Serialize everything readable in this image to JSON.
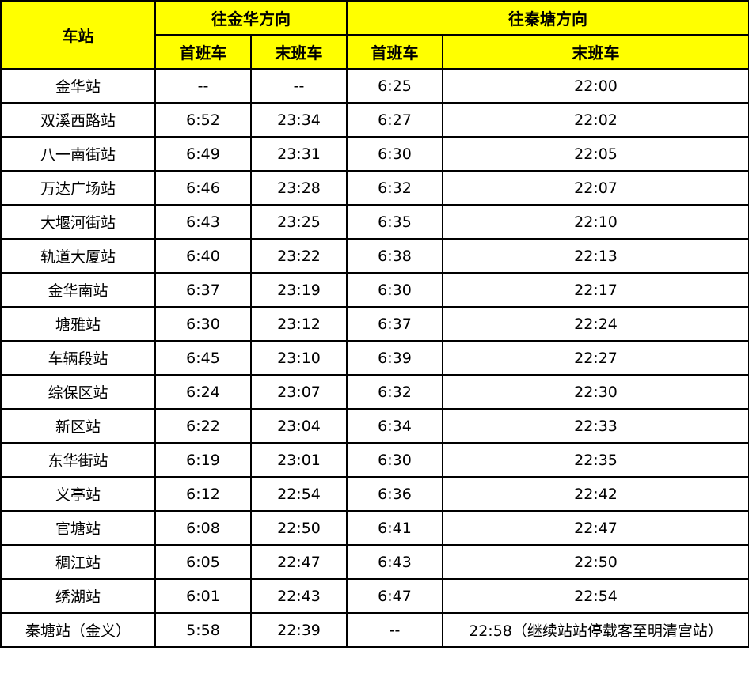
{
  "header": {
    "station": "车站",
    "dir_jinhua": "往金华方向",
    "dir_qintang": "往秦塘方向",
    "first": "首班车",
    "last": "末班车"
  },
  "colors": {
    "header_bg": "#ffff00",
    "border": "#000000"
  },
  "rows": [
    {
      "station": "金华站",
      "jh_first": "--",
      "jh_last": "--",
      "qt_first": "6:25",
      "qt_last": "22:00"
    },
    {
      "station": "双溪西路站",
      "jh_first": "6:52",
      "jh_last": "23:34",
      "qt_first": "6:27",
      "qt_last": "22:02"
    },
    {
      "station": "八一南街站",
      "jh_first": "6:49",
      "jh_last": "23:31",
      "qt_first": "6:30",
      "qt_last": "22:05"
    },
    {
      "station": "万达广场站",
      "jh_first": "6:46",
      "jh_last": "23:28",
      "qt_first": "6:32",
      "qt_last": "22:07"
    },
    {
      "station": "大堰河街站",
      "jh_first": "6:43",
      "jh_last": "23:25",
      "qt_first": "6:35",
      "qt_last": "22:10"
    },
    {
      "station": "轨道大厦站",
      "jh_first": "6:40",
      "jh_last": "23:22",
      "qt_first": "6:38",
      "qt_last": "22:13"
    },
    {
      "station": "金华南站",
      "jh_first": "6:37",
      "jh_last": "23:19",
      "qt_first": "6:30",
      "qt_last": "22:17"
    },
    {
      "station": "塘雅站",
      "jh_first": "6:30",
      "jh_last": "23:12",
      "qt_first": "6:37",
      "qt_last": "22:24"
    },
    {
      "station": "车辆段站",
      "jh_first": "6:45",
      "jh_last": "23:10",
      "qt_first": "6:39",
      "qt_last": "22:27"
    },
    {
      "station": "综保区站",
      "jh_first": "6:24",
      "jh_last": "23:07",
      "qt_first": "6:32",
      "qt_last": "22:30"
    },
    {
      "station": "新区站",
      "jh_first": "6:22",
      "jh_last": "23:04",
      "qt_first": "6:34",
      "qt_last": "22:33"
    },
    {
      "station": "东华街站",
      "jh_first": "6:19",
      "jh_last": "23:01",
      "qt_first": "6:30",
      "qt_last": "22:35"
    },
    {
      "station": "义亭站",
      "jh_first": "6:12",
      "jh_last": "22:54",
      "qt_first": "6:36",
      "qt_last": "22:42"
    },
    {
      "station": "官塘站",
      "jh_first": "6:08",
      "jh_last": "22:50",
      "qt_first": "6:41",
      "qt_last": "22:47"
    },
    {
      "station": "稠江站",
      "jh_first": "6:05",
      "jh_last": "22:47",
      "qt_first": "6:43",
      "qt_last": "22:50"
    },
    {
      "station": "绣湖站",
      "jh_first": "6:01",
      "jh_last": "22:43",
      "qt_first": "6:47",
      "qt_last": "22:54"
    },
    {
      "station": "秦塘站（金义）",
      "jh_first": "5:58",
      "jh_last": "22:39",
      "qt_first": "--",
      "qt_last": "22:58（继续站站停载客至明清宫站）"
    }
  ]
}
